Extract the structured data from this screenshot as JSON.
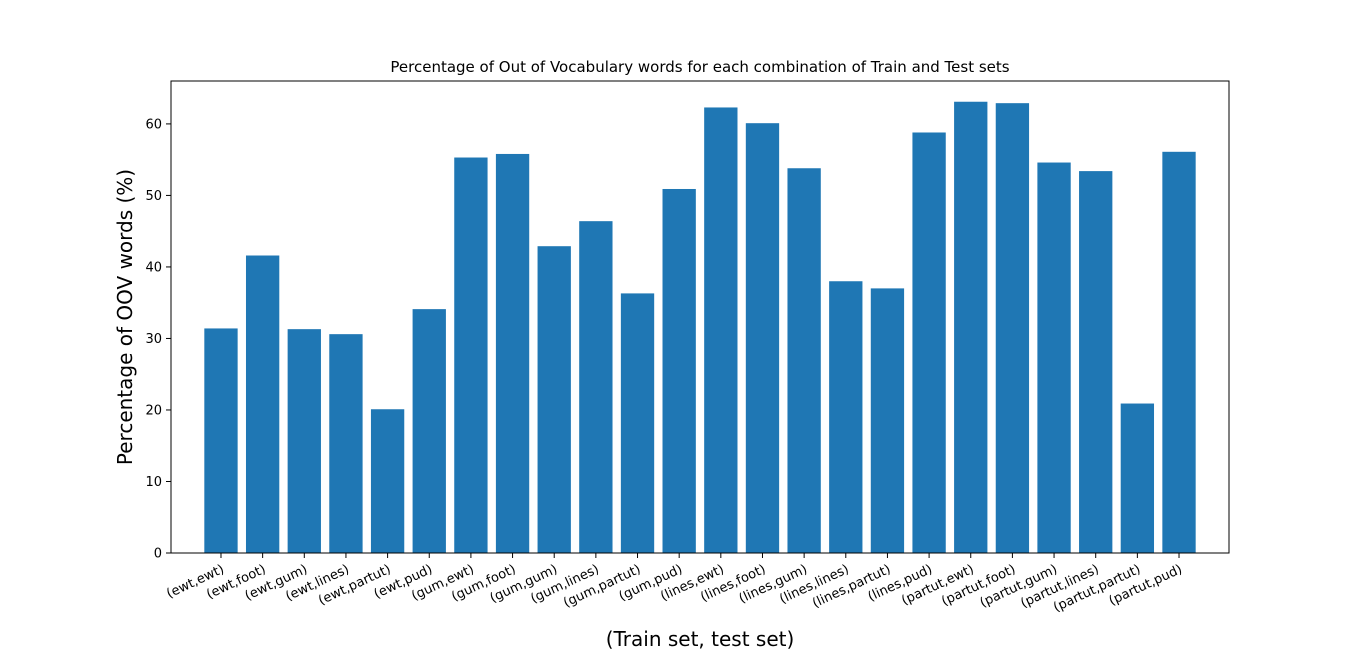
{
  "chart_data": {
    "type": "bar",
    "title": "Percentage of Out of Vocabulary words for each combination of Train and Test sets",
    "xlabel": "(Train set, test set)",
    "ylabel": "Percentage of OOV words (%)",
    "ylim": [
      0,
      66
    ],
    "yticks": [
      0,
      10,
      20,
      30,
      40,
      50,
      60
    ],
    "grid": false,
    "bar_color": "#1f77b4",
    "categories": [
      "(ewt,ewt)",
      "(ewt,foot)",
      "(ewt,gum)",
      "(ewt,lines)",
      "(ewt,partut)",
      "(ewt,pud)",
      "(gum,ewt)",
      "(gum,foot)",
      "(gum,gum)",
      "(gum,lines)",
      "(gum,partut)",
      "(gum,pud)",
      "(lines,ewt)",
      "(lines,foot)",
      "(lines,gum)",
      "(lines,lines)",
      "(lines,partut)",
      "(lines,pud)",
      "(partut,ewt)",
      "(partut,foot)",
      "(partut,gum)",
      "(partut,lines)",
      "(partut,partut)",
      "(partut,pud)"
    ],
    "values": [
      31.4,
      41.6,
      31.3,
      30.6,
      20.1,
      34.1,
      55.3,
      55.8,
      42.9,
      46.4,
      36.3,
      50.9,
      62.3,
      60.1,
      53.8,
      38.0,
      37.0,
      58.8,
      63.1,
      62.9,
      54.6,
      53.4,
      20.9,
      56.1
    ]
  }
}
